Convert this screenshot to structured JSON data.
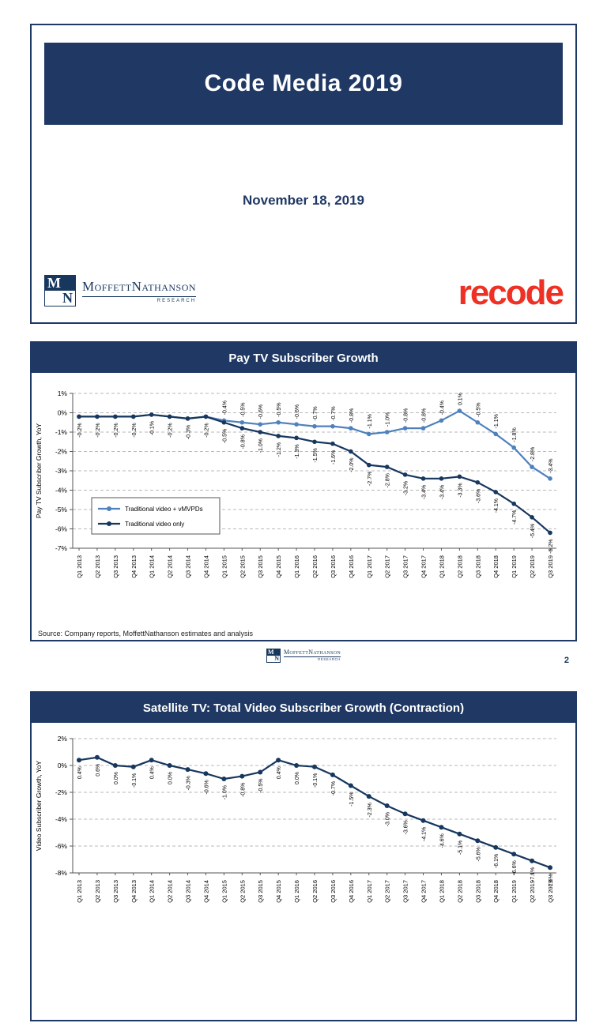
{
  "brand": {
    "monogram_m": "M",
    "monogram_n": "N",
    "name": "MoffettNathanson",
    "sub": "RESEARCH"
  },
  "colors": {
    "navy": "#1F3864",
    "dark_navy": "#17375E",
    "steel_blue": "#4F81BD",
    "recode_red": "#EE3124",
    "gridline": "#B9B9B9"
  },
  "slide1": {
    "title": "Code Media 2019",
    "date": "November 18, 2019",
    "recode_logo": "recode"
  },
  "slide2": {
    "title": "Pay TV Subscriber Growth",
    "source": "Source: Company reports, MoffettNathanson estimates and analysis",
    "page_number": "2"
  },
  "slide3": {
    "title": "Satellite TV: Total Video Subscriber Growth (Contraction)"
  },
  "chart_data": [
    {
      "type": "line",
      "title": "Pay TV Subscriber Growth",
      "ylabel": "Pay TV Subscriber Growth, YoY",
      "ylim": [
        -7,
        1
      ],
      "ytick_step": 1,
      "ytick_labels": [
        "1%",
        "0%",
        "-1%",
        "-2%",
        "-3%",
        "-4%",
        "-5%",
        "-6%",
        "-7%"
      ],
      "grid": "dashed-horizontal",
      "legend_position": "lower-left",
      "categories": [
        "Q1 2013",
        "Q2 2013",
        "Q3 2013",
        "Q4 2013",
        "Q1 2014",
        "Q2 2014",
        "Q3 2014",
        "Q4 2014",
        "Q1 2015",
        "Q2 2015",
        "Q3 2015",
        "Q4 2015",
        "Q1 2016",
        "Q2 2016",
        "Q3 2016",
        "Q4 2016",
        "Q1 2017",
        "Q2 2017",
        "Q3 2017",
        "Q4 2017",
        "Q1 2018",
        "Q2 2018",
        "Q3 2018",
        "Q4 2018",
        "Q1 2019",
        "Q2 2019",
        "Q3 2019"
      ],
      "series": [
        {
          "name": "Traditional video + vMVPDs",
          "color": "#4F81BD",
          "label_position": "above",
          "values": [
            -0.2,
            -0.2,
            -0.2,
            -0.2,
            -0.1,
            -0.2,
            -0.3,
            -0.2,
            -0.4,
            -0.5,
            -0.6,
            -0.5,
            -0.6,
            -0.7,
            -0.7,
            -0.8,
            -1.1,
            -1.0,
            -0.8,
            -0.8,
            -0.4,
            0.1,
            -0.5,
            -1.1,
            -1.8,
            -2.8,
            -3.4
          ],
          "labels": [
            null,
            null,
            null,
            null,
            null,
            null,
            null,
            null,
            "-0.4%",
            "-0.5%",
            "-0.6%",
            "-0.5%",
            "-0.6%",
            "-0.7%",
            "-0.7%",
            "-0.8%",
            "-1.1%",
            "-1.0%",
            "-0.8%",
            "-0.8%",
            "-0.4%",
            "0.1%",
            "-0.5%",
            "-1.1%",
            "-1.8%",
            "-2.8%",
            "-3.4%"
          ]
        },
        {
          "name": "Traditional video only",
          "color": "#17375E",
          "label_position": "below",
          "values": [
            -0.2,
            -0.2,
            -0.2,
            -0.2,
            -0.1,
            -0.2,
            -0.3,
            -0.2,
            -0.5,
            -0.8,
            -1.0,
            -1.2,
            -1.3,
            -1.5,
            -1.6,
            -2.0,
            -2.7,
            -2.8,
            -3.2,
            -3.4,
            -3.4,
            -3.3,
            -3.6,
            -4.1,
            -4.7,
            -5.4,
            -6.2
          ],
          "labels": [
            "-0.2%",
            "-0.2%",
            "-0.2%",
            "-0.2%",
            "-0.1%",
            "-0.2%",
            "-0.3%",
            "-0.2%",
            "-0.5%",
            "-0.8%",
            "-1.0%",
            "-1.2%",
            "-1.3%",
            "-1.5%",
            "-1.6%",
            "-2.0%",
            "-2.7%",
            "-2.8%",
            "-3.2%",
            "-3.4%",
            "-3.4%",
            "-3.3%",
            "-3.6%",
            "-4.1%",
            "-4.7%",
            "-5.4%",
            "-6.2%"
          ]
        }
      ]
    },
    {
      "type": "line",
      "title": "Satellite TV: Total Video Subscriber Growth (Contraction)",
      "ylabel": "Video Subscriber Growth, YoY",
      "note": "chart partially visible; bottom cut off by page edge",
      "ylim": [
        -8,
        2
      ],
      "ytick_step": 2,
      "ytick_labels": [
        "2%",
        "0%",
        "-2%",
        "-4%",
        "-6%",
        "-8%"
      ],
      "grid": "dashed-horizontal",
      "categories": [
        "Q1 2013",
        "Q2 2013",
        "Q3 2013",
        "Q4 2013",
        "Q1 2014",
        "Q2 2014",
        "Q3 2014",
        "Q4 2014",
        "Q1 2015",
        "Q2 2015",
        "Q3 2015",
        "Q4 2015",
        "Q1 2016",
        "Q2 2016",
        "Q3 2016",
        "Q4 2016",
        "Q1 2017",
        "Q2 2017",
        "Q3 2017",
        "Q4 2017",
        "Q1 2018",
        "Q2 2018",
        "Q3 2018",
        "Q4 2018",
        "Q1 2019",
        "Q2 2019",
        "Q3 2019"
      ],
      "series": [
        {
          "name": "Satellite TV total video",
          "color": "#17375E",
          "label_position": "below",
          "values": [
            0.4,
            0.6,
            0.0,
            -0.1,
            0.4,
            0.0,
            -0.3,
            -0.6,
            -1.0,
            -0.8,
            -0.5,
            0.4,
            0.0,
            -0.1,
            -0.7,
            -1.5,
            -2.3,
            -3.0,
            -3.6,
            -4.1,
            -4.6,
            -5.1,
            -5.6,
            -6.1,
            -6.6,
            -7.1,
            -7.6
          ],
          "labels": [
            "0.4%",
            "0.6%",
            "0.0%",
            "-0.1%",
            "0.4%",
            "0.0%",
            "-0.3%",
            "-0.6%",
            "-1.0%",
            "-0.8%",
            "-0.5%",
            "0.4%",
            "0.0%",
            "-0.1%",
            "-0.7%",
            "-1.5%",
            "-2.3%",
            "-3.0%",
            "-3.6%",
            "-4.1%",
            "-4.6%",
            "-5.1%",
            "-5.6%",
            "-6.1%",
            "-6.6%",
            "-7.1%",
            "-7.6%"
          ]
        }
      ]
    }
  ]
}
